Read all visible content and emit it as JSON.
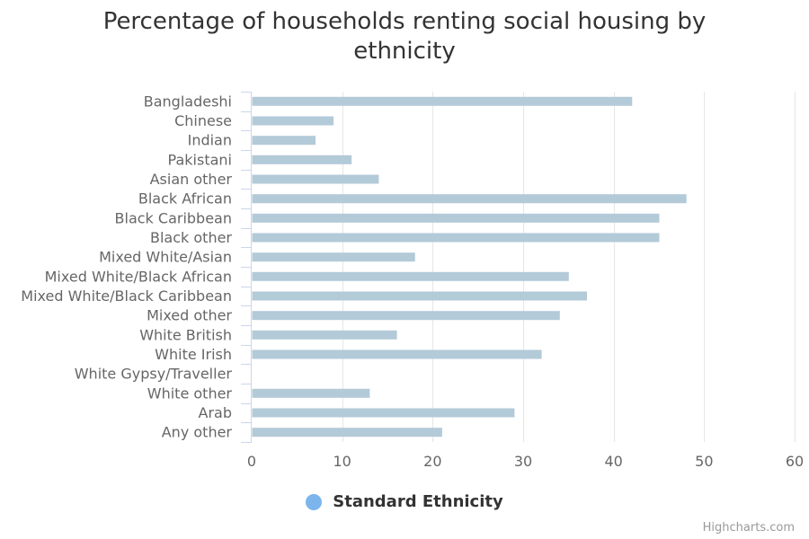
{
  "chart_data": {
    "type": "bar",
    "orientation": "horizontal",
    "title": "Percentage of households renting social housing by ethnicity",
    "title_lines": [
      "Percentage of households renting social housing by",
      "ethnicity"
    ],
    "categories": [
      "Bangladeshi",
      "Chinese",
      "Indian",
      "Pakistani",
      "Asian other",
      "Black African",
      "Black Caribbean",
      "Black other",
      "Mixed White/Asian",
      "Mixed White/Black African",
      "Mixed White/Black Caribbean",
      "Mixed other",
      "White British",
      "White Irish",
      "White Gypsy/Traveller",
      "White other",
      "Arab",
      "Any other"
    ],
    "series": [
      {
        "name": "Standard Ethnicity",
        "values": [
          42,
          9,
          7,
          11,
          14,
          48,
          45,
          45,
          18,
          35,
          37,
          34,
          16,
          32,
          0,
          13,
          29,
          21
        ]
      }
    ],
    "xlim": [
      0,
      60
    ],
    "xticks": [
      0,
      10,
      20,
      30,
      40,
      50,
      60
    ],
    "grid": true,
    "legend_position": "bottom-center",
    "bar_color": "#b3cad8",
    "legend_color": "#7cb5ec"
  },
  "credits": "Highcharts.com"
}
